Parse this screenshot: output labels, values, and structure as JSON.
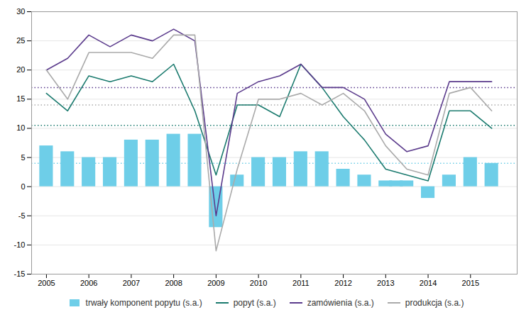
{
  "chart_data": {
    "type": "combo",
    "series": [
      {
        "name": "trwały komponent popytu (s.a.)",
        "type": "bar",
        "color": "#6ECEE8",
        "x": [
          2005.0,
          2005.5,
          2006.0,
          2006.5,
          2007.0,
          2007.5,
          2008.0,
          2008.5,
          2009.0,
          2009.5,
          2010.0,
          2010.5,
          2011.0,
          2011.5,
          2012.0,
          2012.5,
          2013.0,
          2013.25,
          2013.5,
          2013.75,
          2014.0,
          2014.5,
          2015.0,
          2015.5
        ],
        "values": [
          7,
          6,
          5,
          5,
          8,
          8,
          9,
          9,
          -7,
          2,
          5,
          5,
          6,
          6,
          3,
          2,
          1,
          1,
          1,
          0,
          -2,
          2,
          5,
          4
        ]
      },
      {
        "name": "popyt (s.a.)",
        "type": "line",
        "line_style": "solid",
        "color": "#1A7A6E",
        "x": [
          2005.0,
          2005.5,
          2006.0,
          2006.5,
          2007.0,
          2007.5,
          2008.0,
          2008.5,
          2009.0,
          2009.5,
          2010.0,
          2010.5,
          2011.0,
          2011.5,
          2012.0,
          2012.5,
          2013.0,
          2013.5,
          2014.0,
          2014.5,
          2015.0,
          2015.5
        ],
        "values": [
          16,
          13,
          19,
          18,
          19,
          18,
          21,
          13,
          2,
          14,
          14,
          12,
          21,
          17,
          12,
          8,
          3,
          2,
          1,
          13,
          13,
          10
        ]
      },
      {
        "name": "zamówienia (s.a.)",
        "type": "line",
        "line_style": "solid",
        "color": "#5B3B8C",
        "x": [
          2005.0,
          2005.5,
          2006.0,
          2006.5,
          2007.0,
          2007.5,
          2008.0,
          2008.5,
          2009.0,
          2009.5,
          2010.0,
          2010.5,
          2011.0,
          2011.5,
          2012.0,
          2012.5,
          2013.0,
          2013.5,
          2014.0,
          2014.5,
          2015.0,
          2015.5
        ],
        "values": [
          20,
          22,
          26,
          24,
          26,
          25,
          27,
          25,
          -5,
          16,
          18,
          19,
          21,
          17,
          17,
          15,
          9,
          6,
          7,
          18,
          18,
          18
        ]
      },
      {
        "name": "produkcja (s.a.)",
        "type": "line",
        "line_style": "solid",
        "color": "#AAAAAA",
        "x": [
          2005.0,
          2005.5,
          2006.0,
          2006.5,
          2007.0,
          2007.5,
          2008.0,
          2008.5,
          2009.0,
          2009.5,
          2010.0,
          2010.5,
          2011.0,
          2011.5,
          2012.0,
          2012.5,
          2013.0,
          2013.5,
          2014.0,
          2014.5,
          2015.0,
          2015.5
        ],
        "values": [
          20,
          15,
          23,
          23,
          23,
          22,
          26,
          26,
          -11,
          3,
          15,
          15,
          16,
          14,
          16,
          13,
          7,
          3,
          2,
          16,
          17,
          13
        ]
      }
    ],
    "reference_lines": [
      {
        "value": 17.0,
        "color": "#5B3B8C",
        "line_style": "dotted"
      },
      {
        "value": 10.5,
        "color": "#1A7A6E",
        "line_style": "dotted"
      },
      {
        "value": 14.0,
        "color": "#AAAAAA",
        "line_style": "dotted"
      },
      {
        "value": 4.0,
        "color": "#6ECEE8",
        "line_style": "dotted"
      }
    ],
    "xlim": [
      2004.65,
      2016.1
    ],
    "ylim": [
      -15,
      30
    ],
    "xticks": [
      2005,
      2006,
      2007,
      2008,
      2009,
      2010,
      2011,
      2012,
      2013,
      2014,
      2015
    ],
    "yticks": [
      -15,
      -10,
      -5,
      0,
      5,
      10,
      15,
      20,
      25,
      30
    ],
    "grid": true,
    "legend": "bottom"
  }
}
